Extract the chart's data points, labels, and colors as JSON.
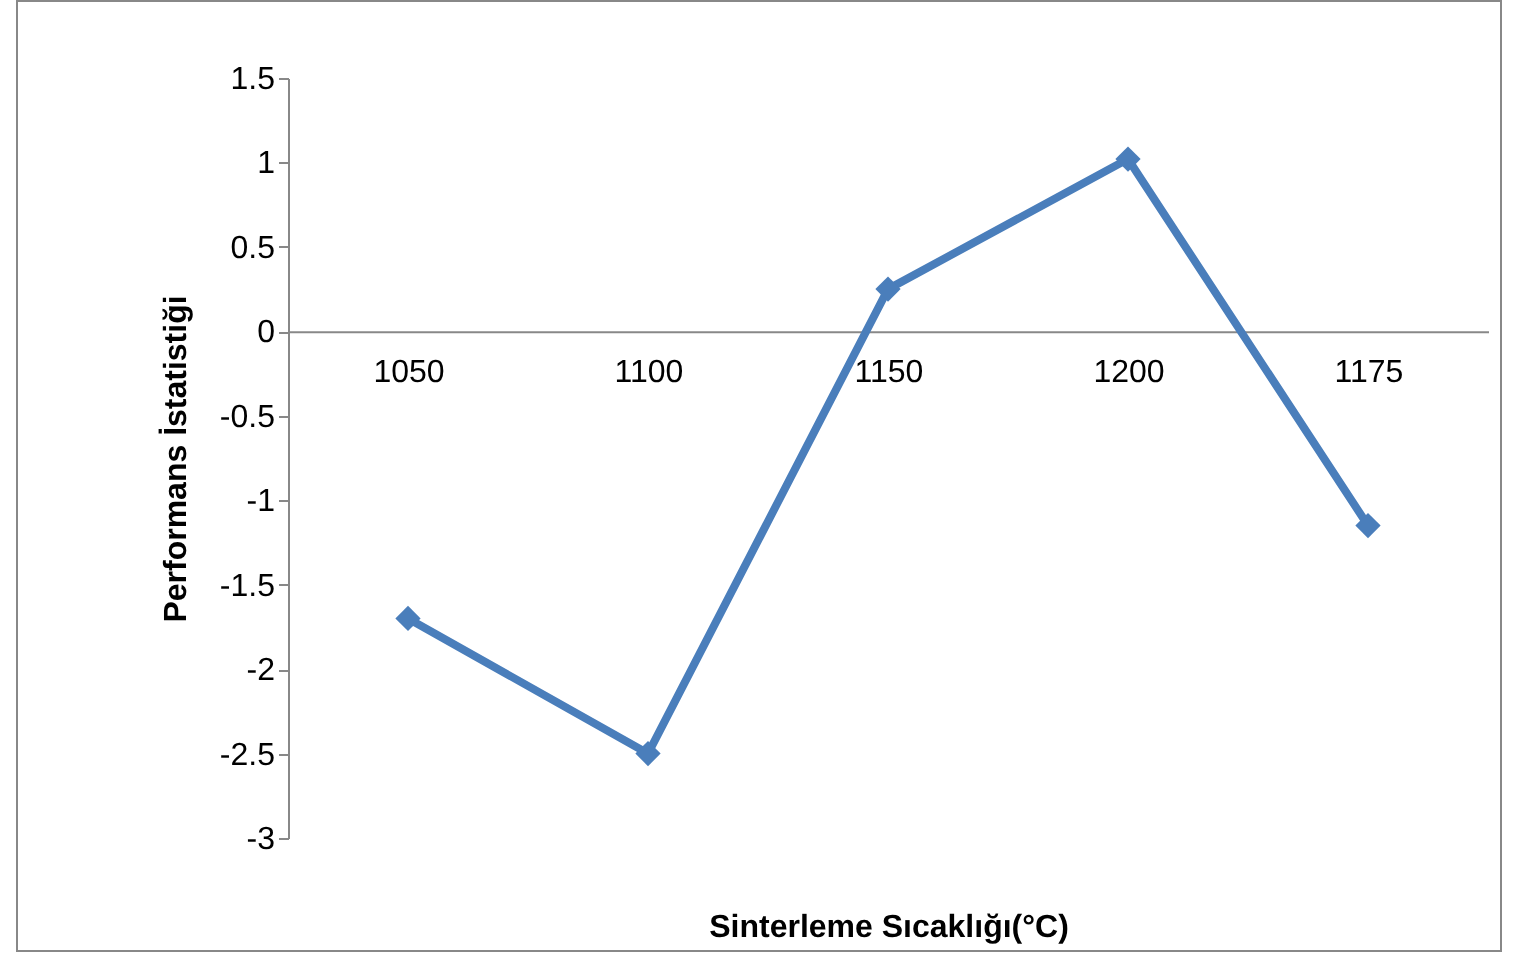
{
  "chart_data": {
    "type": "line",
    "xlabel": "Sinterleme Sıcaklığı(°C)",
    "ylabel": "Performans İstatistiği",
    "categories": [
      "1050",
      "1100",
      "1150",
      "1200",
      "1175"
    ],
    "series": [
      {
        "color": "#4a7ebb",
        "values": [
          -1.7,
          -2.5,
          0.25,
          1.02,
          -1.15
        ]
      }
    ],
    "ylim": [
      -3,
      1.5
    ],
    "yticks": [
      -3,
      -2.5,
      -2,
      -1.5,
      -1,
      -0.5,
      0,
      0.5,
      1,
      1.5
    ],
    "grid": false,
    "marker": "diamond",
    "line_style": "solid"
  }
}
